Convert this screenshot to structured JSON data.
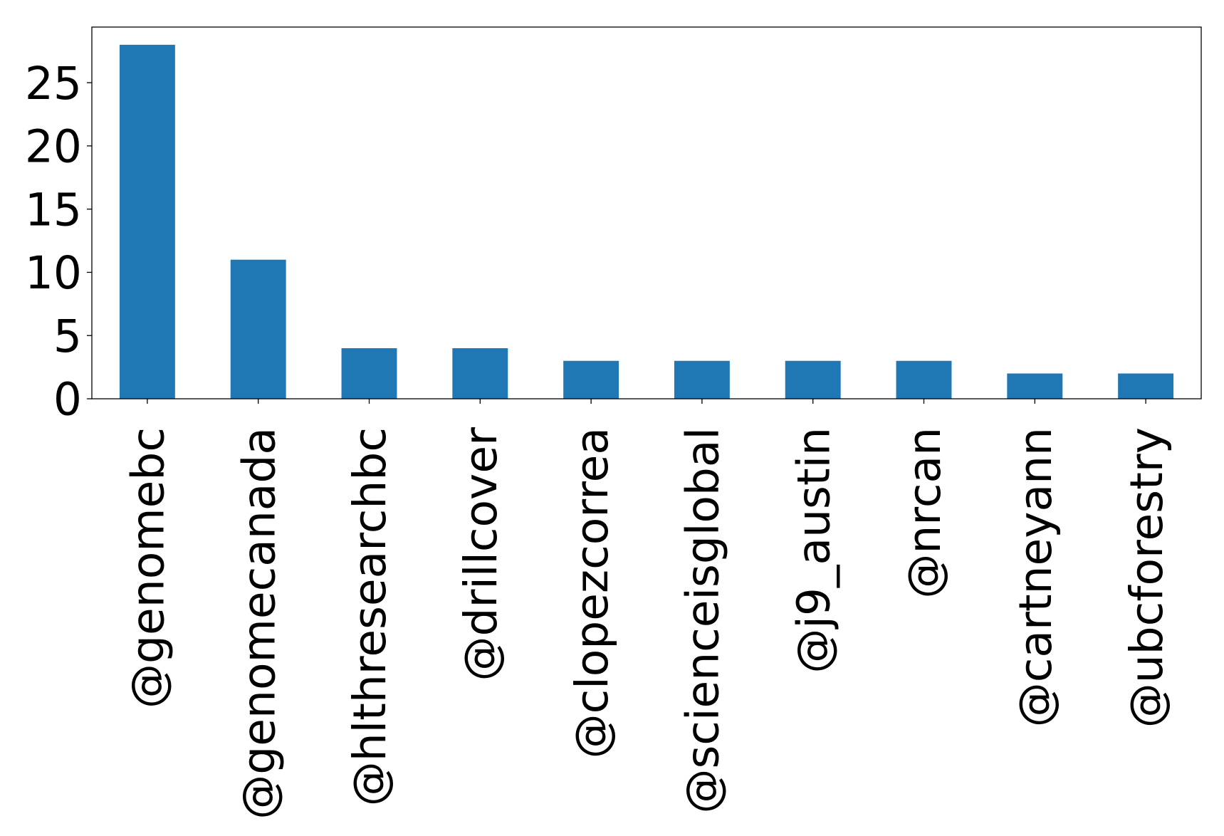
{
  "chart_data": {
    "type": "bar",
    "title": "",
    "xlabel": "",
    "ylabel": "",
    "categories": [
      "@genomebc",
      "@genomecanada",
      "@hlthresearchbc",
      "@drillcover",
      "@clopezcorrea",
      "@scienceisglobal",
      "@j9_austin",
      "@nrcan",
      "@cartneyann",
      "@ubcforestry"
    ],
    "values": [
      28,
      11,
      4,
      4,
      3,
      3,
      3,
      3,
      2,
      2
    ],
    "ylim": [
      0,
      29.4
    ],
    "yticks": [
      0,
      5,
      10,
      15,
      20,
      25
    ],
    "ytick_labels": [
      "0",
      "5",
      "10",
      "15",
      "20",
      "25"
    ],
    "grid": false,
    "legend": "none",
    "bar_color": "#1f77b4",
    "x_tick_rotation": 90
  }
}
